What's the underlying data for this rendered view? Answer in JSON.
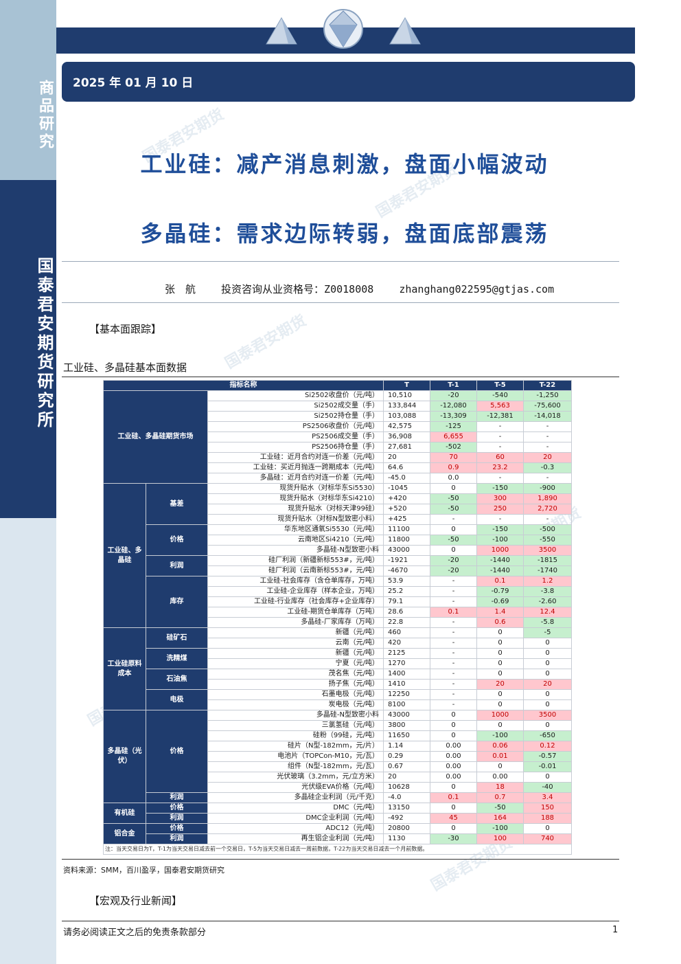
{
  "sidebar": {
    "top_label": "商品研究",
    "org_label": "国泰君安期货研究所"
  },
  "header": {
    "date": "2025 年 01 月 10 日"
  },
  "watermark_text": "国泰君安期货",
  "titles": {
    "line1": "工业硅：减产消息刺激，盘面小幅波动",
    "line2": "多晶硅：需求边际转弱，盘面底部震荡"
  },
  "author": {
    "name": "张　航",
    "license": "投资咨询从业资格号：Z0018008",
    "email": "zhanghang022595@gtjas.com"
  },
  "sections": {
    "fundamental": "【基本面跟踪】",
    "news": "【宏观及行业新闻】"
  },
  "table": {
    "caption": "工业硅、多晶硅基本面数据",
    "headers": [
      "指标名称",
      "T",
      "T-1",
      "T-5",
      "T-22"
    ],
    "note": "注：当天交易日为T，T-1为当天交易日减去前一个交易日，T-5为当天交易日减去一周前数据，T-22为当天交易日减去一个月前数据。",
    "groups": [
      {
        "name": "工业硅、多晶硅期货市场",
        "subs": [
          {
            "name": "",
            "rows": [
              [
                "Si2502收盘价（元/吨）",
                "10,510",
                "-20",
                "-540",
                "-1,250"
              ],
              [
                "Si2502成交量（手）",
                "133,844",
                "-12,080",
                "5,563",
                "-75,600"
              ],
              [
                "Si2502持仓量（手）",
                "103,088",
                "-13,309",
                "-12,381",
                "-14,018"
              ],
              [
                "PS2506收盘价（元/吨）",
                "42,575",
                "-125",
                "-",
                "-"
              ],
              [
                "PS2506成交量（手）",
                "36,908",
                "6,655",
                "-",
                "-"
              ],
              [
                "PS2506持仓量（手）",
                "27,681",
                "-502",
                "-",
                "-"
              ],
              [
                "工业硅：近月合约对连一价差（元/吨）",
                "20",
                "70",
                "60",
                "20"
              ],
              [
                "工业硅：买近月抛连一跨期成本（元/吨）",
                "64.6",
                "0.9",
                "23.2",
                "-0.3"
              ],
              [
                "多晶硅：近月合约对连一价差（元/吨）",
                "-45.0",
                "0.0",
                "-",
                "-"
              ]
            ]
          }
        ]
      },
      {
        "name": "工业硅、多晶硅",
        "subs": [
          {
            "name": "基差",
            "rows": [
              [
                "现货升贴水（对标华东Si5530）",
                "-1045",
                "0",
                "-150",
                "-900"
              ],
              [
                "现货升贴水（对标华东Si4210）",
                "+420",
                "-50",
                "300",
                "1,890"
              ],
              [
                "现货升贴水（对标天津99硅）",
                "+520",
                "-50",
                "250",
                "2,720"
              ],
              [
                "现货升贴水（对标N型致密小料）",
                "+425",
                "-",
                "-",
                "-"
              ]
            ]
          },
          {
            "name": "价格",
            "rows": [
              [
                "华东地区通氧Si5530（元/吨）",
                "11100",
                "0",
                "-150",
                "-500"
              ],
              [
                "云南地区Si4210（元/吨）",
                "11800",
                "-50",
                "-100",
                "-550"
              ],
              [
                "多晶硅-N型致密小料",
                "43000",
                "0",
                "1000",
                "3500"
              ]
            ]
          },
          {
            "name": "利润",
            "rows": [
              [
                "硅厂利润（新疆新标553#，元/吨）",
                "-1921",
                "-20",
                "-1440",
                "-1815"
              ],
              [
                "硅厂利润（云南新标553#，元/吨）",
                "-4670",
                "-20",
                "-1440",
                "-1740"
              ]
            ]
          },
          {
            "name": "库存",
            "rows": [
              [
                "工业硅-社会库存（含仓单库存，万吨）",
                "53.9",
                "-",
                "0.1",
                "1.2"
              ],
              [
                "工业硅-企业库存（样本企业，万吨）",
                "25.2",
                "-",
                "-0.79",
                "-3.8"
              ],
              [
                "工业硅-行业库存（社会库存+企业库存）",
                "79.1",
                "-",
                "-0.69",
                "-2.60"
              ],
              [
                "工业硅-期货仓单库存（万吨）",
                "28.6",
                "0.1",
                "1.4",
                "12.4"
              ],
              [
                "多晶硅-厂家库存（万吨）",
                "22.8",
                "-",
                "0.6",
                "-5.8"
              ]
            ]
          }
        ]
      },
      {
        "name": "工业硅原料成本",
        "subs": [
          {
            "name": "硅矿石",
            "rows": [
              [
                "新疆（元/吨）",
                "460",
                "-",
                "0",
                "-5"
              ],
              [
                "云南（元/吨）",
                "420",
                "-",
                "0",
                "0"
              ]
            ]
          },
          {
            "name": "洗精煤",
            "rows": [
              [
                "新疆（元/吨）",
                "2125",
                "-",
                "0",
                "0"
              ],
              [
                "宁夏（元/吨）",
                "1270",
                "-",
                "0",
                "0"
              ]
            ]
          },
          {
            "name": "石油焦",
            "rows": [
              [
                "茂名焦（元/吨）",
                "1400",
                "-",
                "0",
                "0"
              ],
              [
                "扬子焦（元/吨）",
                "1410",
                "-",
                "20",
                "20"
              ]
            ]
          },
          {
            "name": "电极",
            "rows": [
              [
                "石墨电极（元/吨）",
                "12250",
                "-",
                "0",
                "0"
              ],
              [
                "炭电极（元/吨）",
                "8100",
                "-",
                "0",
                "0"
              ]
            ]
          }
        ]
      },
      {
        "name": "多晶硅（光伏）",
        "subs": [
          {
            "name": "价格",
            "rows": [
              [
                "多晶硅-N型致密小料",
                "43000",
                "0",
                "1000",
                "3500"
              ],
              [
                "三氯氢硅（元/吨）",
                "3800",
                "0",
                "0",
                "0"
              ],
              [
                "硅粉（99硅，元/吨）",
                "11650",
                "0",
                "-100",
                "-650"
              ],
              [
                "硅片（N型-182mm，元/片）",
                "1.14",
                "0.00",
                "0.06",
                "0.12"
              ],
              [
                "电池片（TOPCon-M10，元/瓦）",
                "0.29",
                "0.00",
                "0.01",
                "-0.57"
              ],
              [
                "组件（N型-182mm，元/瓦）",
                "0.67",
                "0.00",
                "0",
                "-0.01"
              ],
              [
                "光伏玻璃（3.2mm，元/立方米）",
                "20",
                "0.00",
                "0.00",
                "0"
              ],
              [
                "光伏级EVA价格（元/吨）",
                "10628",
                "0",
                "18",
                "-40"
              ]
            ]
          },
          {
            "name": "利润",
            "rows": [
              [
                "多晶硅企业利润（元/千克）",
                "-4.0",
                "0.1",
                "0.7",
                "3.4"
              ]
            ]
          }
        ]
      },
      {
        "name": "有机硅",
        "subs": [
          {
            "name": "价格",
            "rows": [
              [
                "DMC（元/吨）",
                "13150",
                "0",
                "-50",
                "150"
              ]
            ]
          },
          {
            "name": "利润",
            "rows": [
              [
                "DMC企业利润（元/吨）",
                "-492",
                "45",
                "164",
                "188"
              ]
            ]
          }
        ]
      },
      {
        "name": "铝合金",
        "subs": [
          {
            "name": "价格",
            "rows": [
              [
                "ADC12（元/吨）",
                "20800",
                "0",
                "-100",
                "0"
              ]
            ]
          },
          {
            "name": "利润",
            "rows": [
              [
                "再生铝企业利润（元/吨）",
                "1130",
                "-30",
                "100",
                "740"
              ]
            ]
          }
        ]
      }
    ]
  },
  "source": "资料来源：SMM，百川盈孚，国泰君安期货研究",
  "footer": {
    "disclaimer": "请务必阅读正文之后的免责条款部分",
    "page": "1"
  },
  "colors": {
    "navy": "#1f3c6e",
    "title_blue": "#1f4e99",
    "sidebar_light": "#a8c2d4",
    "green_fill": "#c6efce",
    "red_fill": "#ffc7ce"
  }
}
